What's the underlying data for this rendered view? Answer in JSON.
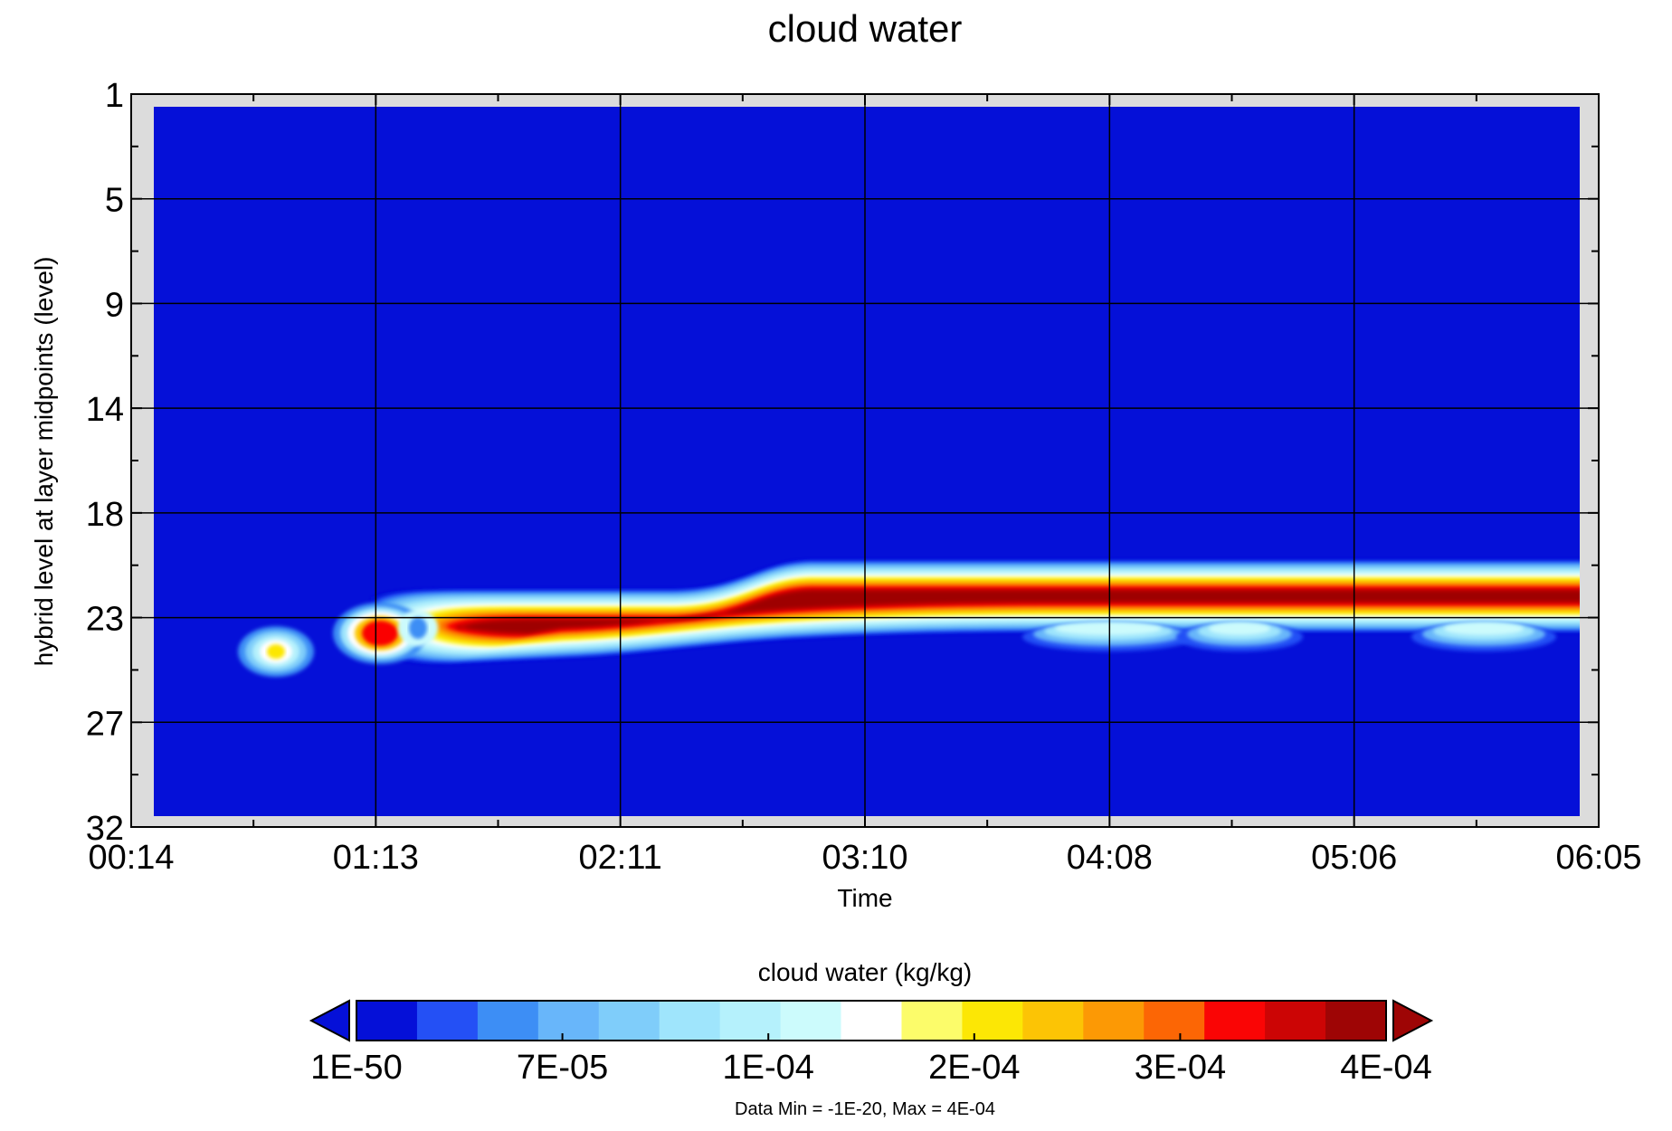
{
  "chart_data": {
    "type": "heatmap",
    "title": "cloud water",
    "xlabel": "Time",
    "ylabel": "hybrid level at layer midpoints (level)",
    "x_tick_labels": [
      "00:14",
      "01:13",
      "02:11",
      "03:10",
      "04:08",
      "05:06",
      "06:05"
    ],
    "y_tick_labels": [
      "1",
      "5",
      "9",
      "14",
      "18",
      "23",
      "27",
      "32"
    ],
    "y_inverted": true,
    "grid": true,
    "colorbar": {
      "title": "cloud water (kg/kg)",
      "tick_labels": [
        "1E-50",
        "7E-05",
        "1E-04",
        "2E-04",
        "3E-04",
        "4E-04"
      ],
      "colors": [
        "#0510d8",
        "#2450f5",
        "#3d8ef5",
        "#68b6fa",
        "#7fcdfa",
        "#9fe5fc",
        "#b5f1fc",
        "#ccfbfc",
        "#ffffff",
        "#fcfc6a",
        "#fce705",
        "#fcc405",
        "#fc9905",
        "#fc6605",
        "#fa0505",
        "#cc0505",
        "#9e0505"
      ],
      "under_color": "#0510d8",
      "over_color": "#9e0505",
      "extend": "both"
    },
    "annotation": "Data Min = -1E-20, Max = 4E-04",
    "data_range": {
      "min": "-1E-20",
      "max": "4E-04"
    },
    "features": [
      {
        "name": "cloud-band-main",
        "time_range": [
          "01:13",
          "06:05"
        ],
        "level_range": [
          20,
          24
        ],
        "peak_value": "4E-04"
      },
      {
        "name": "cloud-blob-early",
        "time_range": [
          "00:40",
          "01:05"
        ],
        "level_range": [
          23,
          25
        ],
        "peak_value": "2E-04"
      }
    ]
  }
}
